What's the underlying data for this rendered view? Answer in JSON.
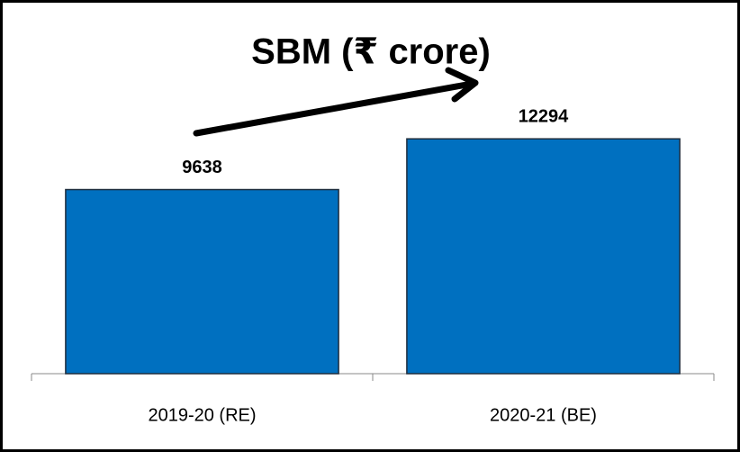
{
  "chart_data": {
    "type": "bar",
    "title": "SBM (₹ crore)",
    "categories": [
      "2019-20 (RE)",
      "2020-21 (BE)"
    ],
    "values": [
      9638,
      12294
    ],
    "color": "#0070c0",
    "ylim": [
      0,
      14000
    ]
  }
}
